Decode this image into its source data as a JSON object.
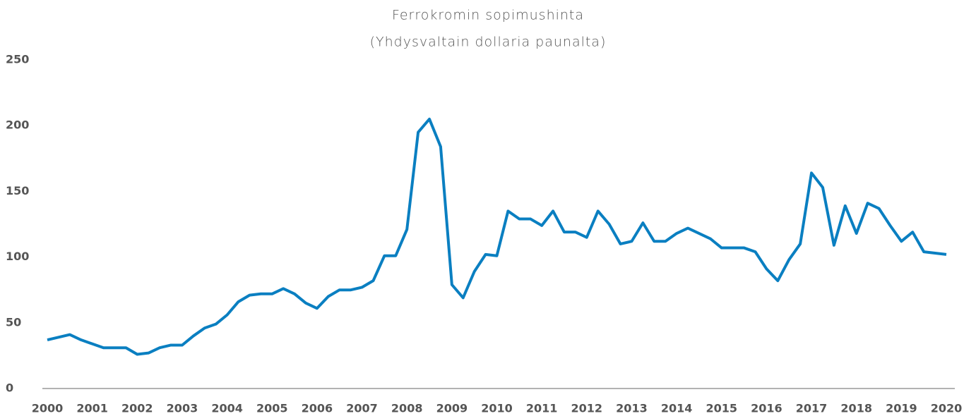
{
  "chart_data": {
    "type": "line",
    "title": "Ferrokromin sopimushinta",
    "subtitle": "(Yhdysvaltain dollaria paunalta)",
    "x": [
      2000,
      2000.25,
      2000.5,
      2000.75,
      2001,
      2001.25,
      2001.5,
      2001.75,
      2002,
      2002.25,
      2002.5,
      2002.75,
      2003,
      2003.25,
      2003.5,
      2003.75,
      2004,
      2004.25,
      2004.5,
      2004.75,
      2005,
      2005.25,
      2005.5,
      2005.75,
      2006,
      2006.25,
      2006.5,
      2006.75,
      2007,
      2007.25,
      2007.5,
      2007.75,
      2008,
      2008.25,
      2008.5,
      2008.75,
      2009,
      2009.25,
      2009.5,
      2009.75,
      2010,
      2010.25,
      2010.5,
      2010.75,
      2011,
      2011.25,
      2011.5,
      2011.75,
      2012,
      2012.25,
      2012.5,
      2012.75,
      2013,
      2013.25,
      2013.5,
      2013.75,
      2014,
      2014.25,
      2014.5,
      2014.75,
      2015,
      2015.25,
      2015.5,
      2015.75,
      2016,
      2016.25,
      2016.5,
      2016.75,
      2017,
      2017.25,
      2017.5,
      2017.75,
      2018,
      2018.25,
      2018.5,
      2018.75,
      2019,
      2019.25,
      2019.5,
      2019.75,
      2020
    ],
    "series": [
      {
        "color": "#0a7fc1",
        "values": [
          37,
          39,
          41,
          37,
          34,
          31,
          31,
          31,
          26,
          27,
          31,
          33,
          33,
          40,
          46,
          49,
          56,
          66,
          71,
          72,
          72,
          76,
          72,
          65,
          61,
          70,
          75,
          75,
          77,
          82,
          101,
          101,
          121,
          195,
          205,
          184,
          79,
          69,
          89,
          102,
          101,
          135,
          129,
          129,
          124,
          135,
          119,
          119,
          115,
          135,
          125,
          110,
          112,
          126,
          112,
          112,
          118,
          122,
          118,
          114,
          107,
          107,
          107,
          104,
          91,
          82,
          98,
          110,
          164,
          153,
          109,
          139,
          118,
          141,
          137,
          124,
          112,
          119,
          104,
          103,
          102
        ]
      }
    ],
    "xlim": [
      2000,
      2020
    ],
    "xticks": [
      2000,
      2001,
      2002,
      2003,
      2004,
      2005,
      2006,
      2007,
      2008,
      2009,
      2010,
      2011,
      2012,
      2013,
      2014,
      2015,
      2016,
      2017,
      2018,
      2019,
      2020
    ],
    "ylim": [
      0,
      250
    ],
    "yticks": [
      0,
      50,
      100,
      150,
      200,
      250
    ]
  }
}
